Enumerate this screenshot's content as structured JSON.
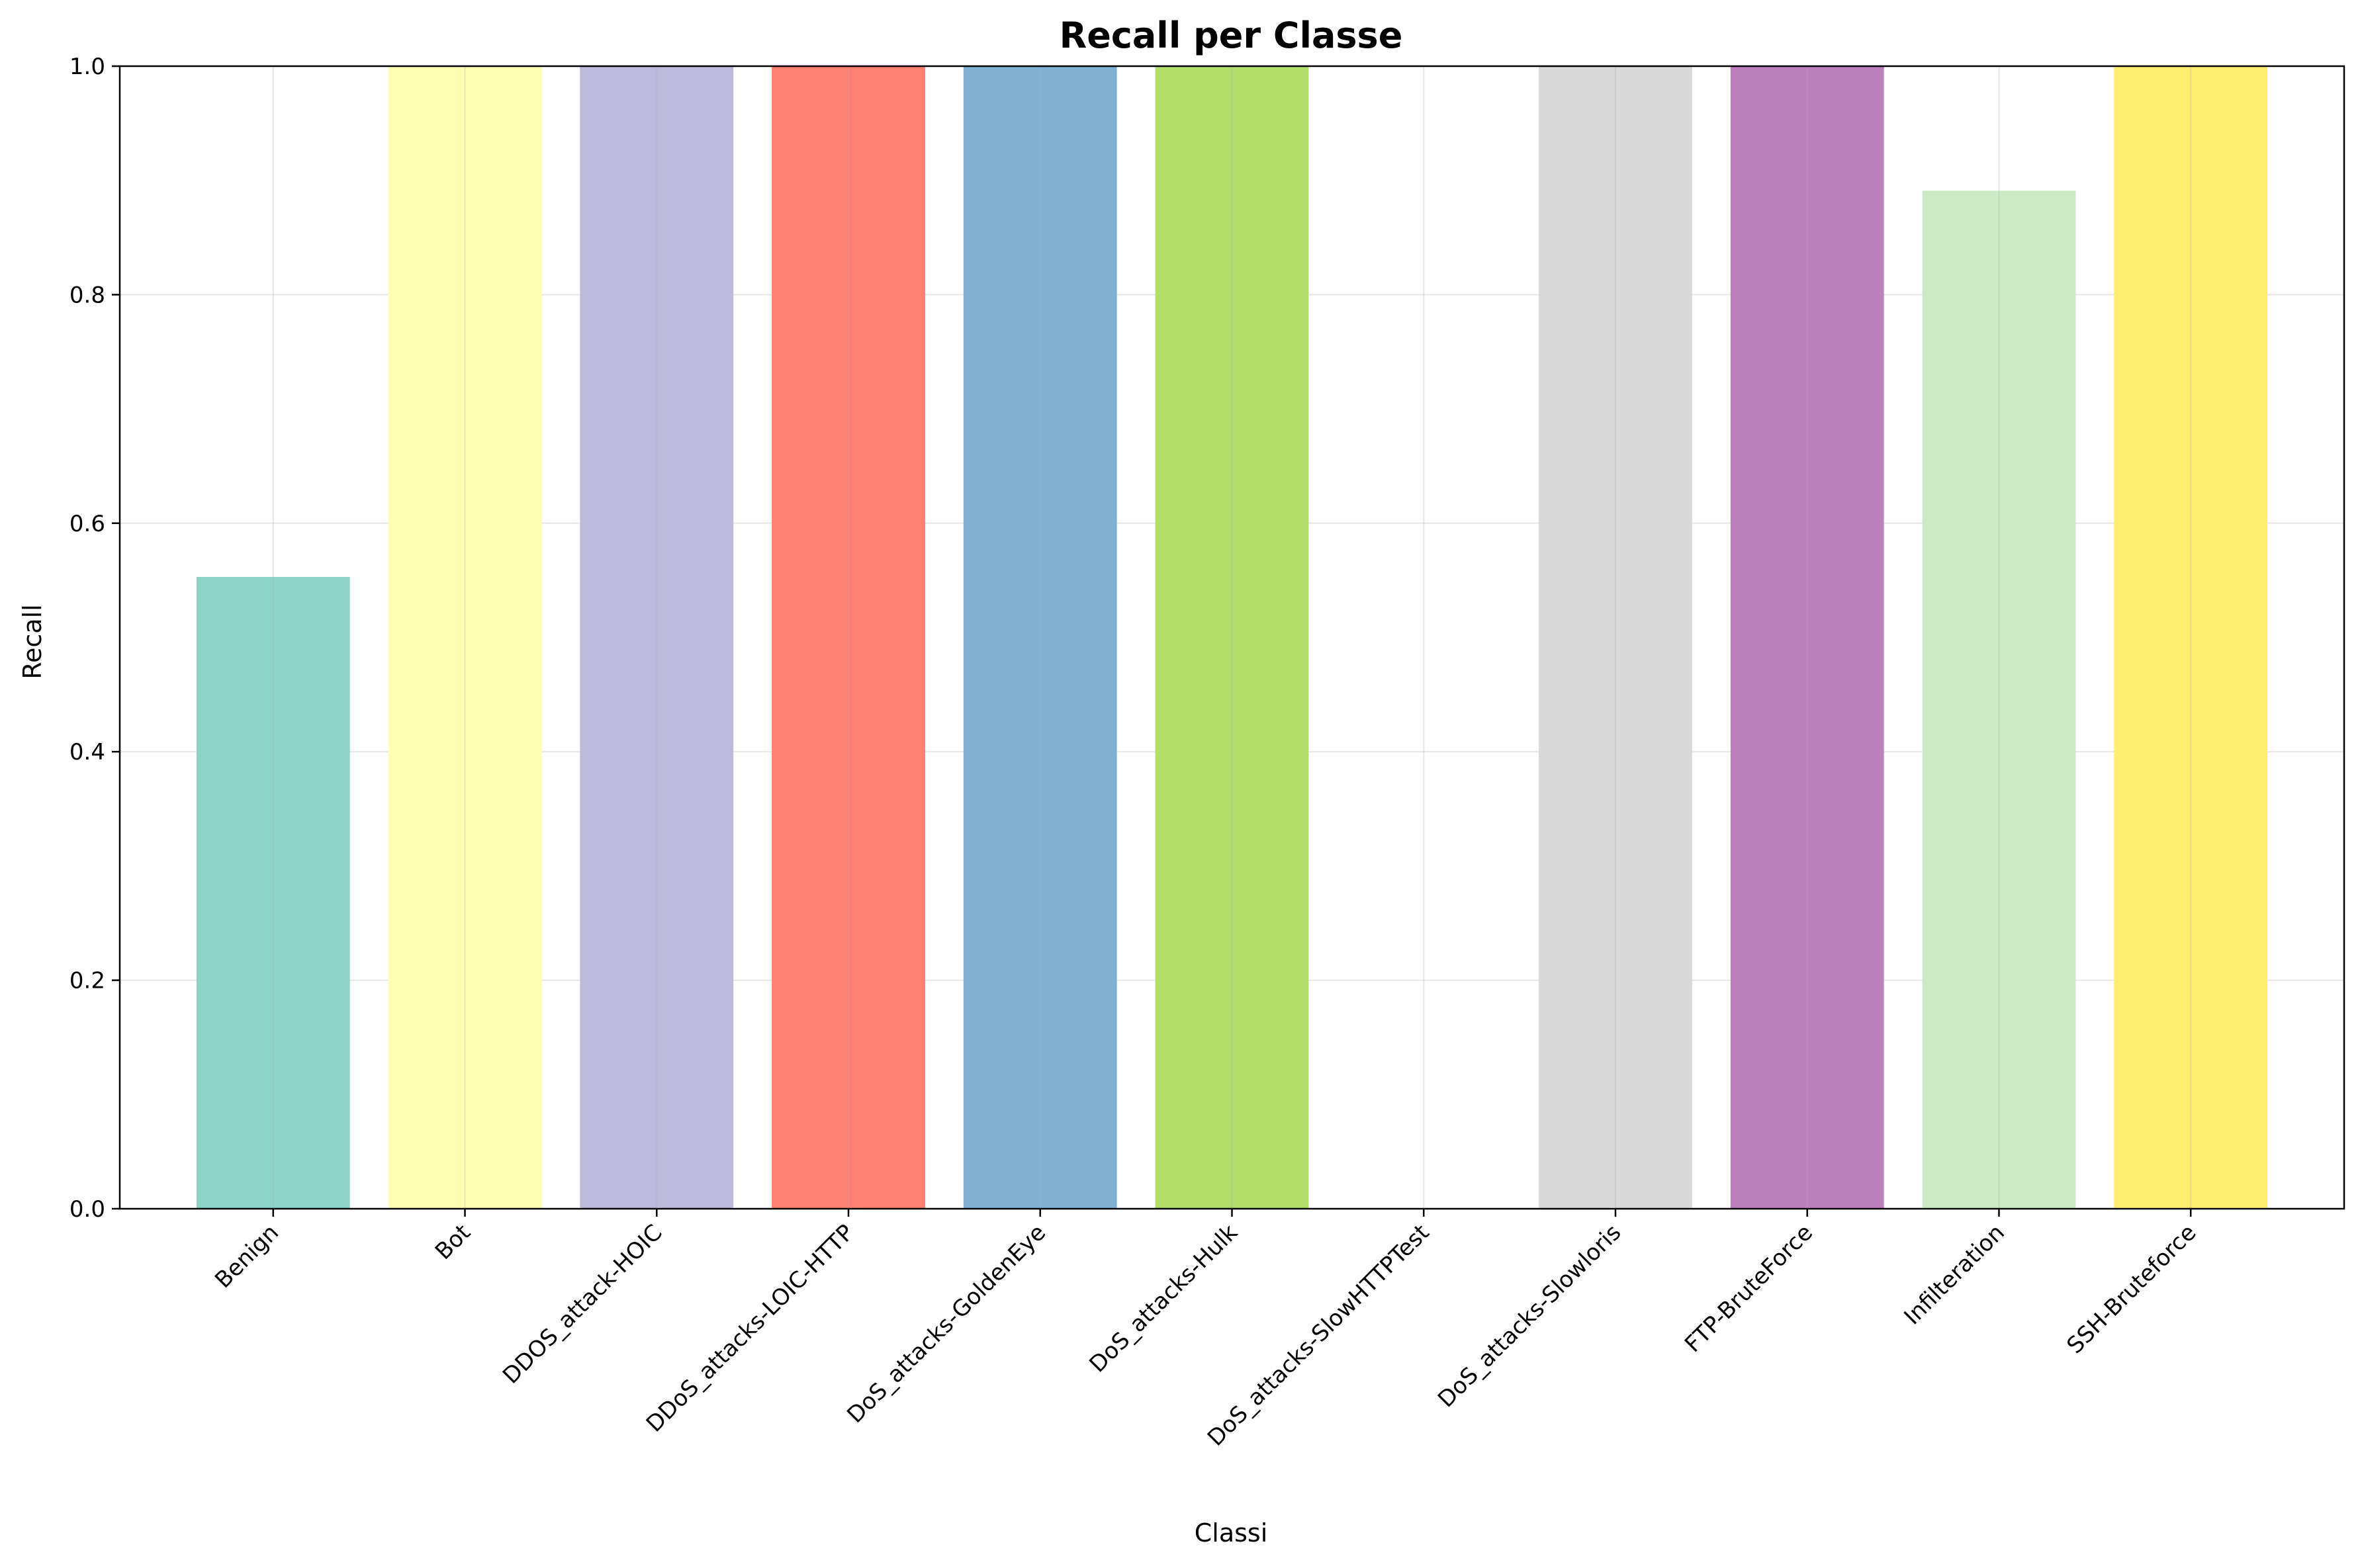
{
  "chart_data": {
    "type": "bar",
    "title": "Recall per Classe",
    "xlabel": "Classi",
    "ylabel": "Recall",
    "ylim": [
      0,
      1.0
    ],
    "yticks": [
      "0.0",
      "0.2",
      "0.4",
      "0.6",
      "0.8",
      "1.0"
    ],
    "ytick_values": [
      0,
      0.2,
      0.4,
      0.6,
      0.8,
      1.0
    ],
    "grid": true,
    "categories": [
      "Benign",
      "Bot",
      "DDOS_attack-HOIC",
      "DDoS_attacks-LOIC-HTTP",
      "DoS_attacks-GoldenEye",
      "DoS_attacks-Hulk",
      "DoS_attacks-SlowHTTPTest",
      "DoS_attacks-Slowloris",
      "FTP-BruteForce",
      "Infilteration",
      "SSH-Bruteforce"
    ],
    "values": [
      0.553,
      1.0,
      1.0,
      1.0,
      1.0,
      1.0,
      0.0,
      1.0,
      1.0,
      0.891,
      1.0
    ],
    "colors": [
      "#8dd3c7",
      "#ffffb3",
      "#bebada",
      "#fb8072",
      "#80b1d3",
      "#b3de69",
      "#fccde5",
      "#d9d9d9",
      "#bc80bd",
      "#ccebc5",
      "#ffed6f"
    ]
  }
}
